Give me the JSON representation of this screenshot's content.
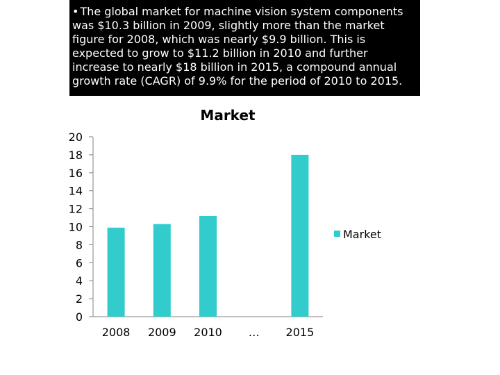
{
  "slide": {
    "bullet_text": "The global market for machine vision system components was $10.3 billion in 2009, slightly more than the market figure for 2008, which was nearly $9.9 billion. This is expected to grow to $11.2 billion in 2010 and further increase to nearly $18 billion in 2015, a compound annual growth rate (CAGR) of 9.9% for the period of 2010 to 2015."
  },
  "chart_data": {
    "type": "bar",
    "title": "Market",
    "categories": [
      "2008",
      "2009",
      "2010",
      "…",
      "2015"
    ],
    "series": [
      {
        "name": "Market",
        "values": [
          9.9,
          10.3,
          11.2,
          null,
          18
        ]
      }
    ],
    "ylim": [
      0,
      20
    ],
    "yticks": [
      0,
      2,
      4,
      6,
      8,
      10,
      12,
      14,
      16,
      18,
      20
    ],
    "xlabel": "",
    "ylabel": "",
    "legend": "right",
    "grid": false,
    "bar_color": "#33CCCC"
  }
}
